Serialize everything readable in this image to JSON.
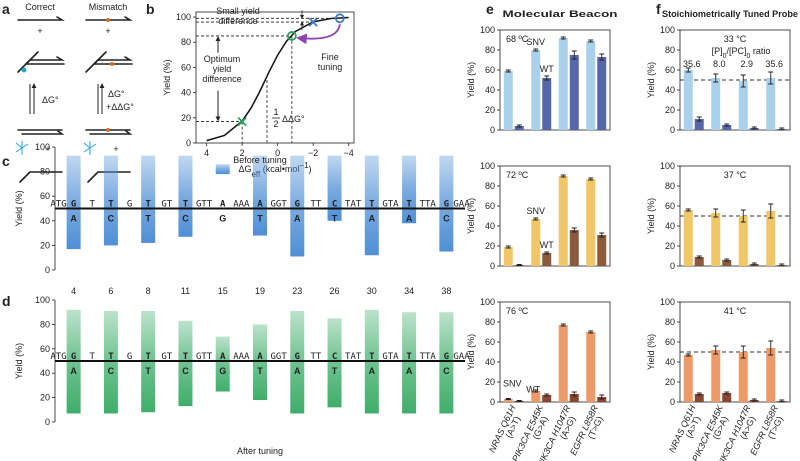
{
  "panel_labels": [
    "a",
    "b",
    "c",
    "d",
    "e",
    "f"
  ],
  "panel_a": {
    "correct": "Correct",
    "mismatch": "Mismatch",
    "plus": "+",
    "dg": "ΔG°",
    "ddg": "+ΔΔG°"
  },
  "panel_e_title": "Molecular Beacon",
  "panel_f_title": "Stoichiometrically Tuned Probe",
  "sequence": {
    "flanks": [
      "ATG",
      "T",
      "G",
      "GT",
      "GTT",
      "AAA",
      "GGT",
      "TT",
      "TAT",
      "GTA",
      "TTA",
      "GAA"
    ],
    "bases": [
      "G",
      "T",
      "T",
      "T",
      "A",
      "A",
      "G",
      "C",
      "T",
      "T",
      "G"
    ],
    "mismatches": [
      "A",
      "C",
      "T",
      "C",
      "G",
      "T",
      "A",
      "T",
      "A",
      "A",
      "C"
    ]
  },
  "chart_data": [
    {
      "type": "line",
      "ylabel": "Yield (%)",
      "xlabel": [
        "ΔG",
        "eff",
        " (kcal•mol",
        "−1",
        ")"
      ],
      "xlim": [
        4.6,
        -4.3
      ],
      "ylim": [
        0,
        104
      ],
      "xticks": [
        4,
        2,
        0,
        {
          "value": -2,
          "label": "−2"
        },
        {
          "value": -4,
          "label": "−4"
        }
      ],
      "yticks": [
        0,
        20,
        40,
        60,
        80,
        100
      ],
      "x": [
        4,
        3,
        2,
        1.5,
        1,
        0.5,
        0,
        -0.5,
        -1,
        -2,
        -3,
        -4
      ],
      "values": [
        1.9,
        6,
        17.4,
        27.7,
        41.1,
        56,
        69.8,
        80.8,
        88.5,
        96.2,
        98.8,
        99.6
      ],
      "color": "#111111",
      "points": {
        "x": [
          2,
          -0.8,
          -2,
          -3.5
        ],
        "values": [
          17,
          85,
          96,
          99
        ],
        "markers": [
          "x",
          "o",
          "x",
          "o"
        ],
        "colors": [
          "#2ca05a",
          "#2ca05a",
          "#3a7cc8",
          "#3a7cc8"
        ]
      },
      "annotations": {
        "small": [
          "Small yield",
          "difference"
        ],
        "optimum": [
          "Optimum",
          "yield",
          "difference"
        ],
        "fine": [
          "Fine",
          "tuning"
        ],
        "half": [
          "1",
          "2",
          "ΔΔG°"
        ]
      }
    },
    {
      "type": "range_bar",
      "title": "Before tuning",
      "ylabel": "Yield (%)",
      "color": "#4f8fd6",
      "categories": [
        "4",
        "6",
        "8",
        "11",
        "15",
        "19",
        "23",
        "26",
        "30",
        "34",
        "38"
      ],
      "high": [
        93,
        93,
        93,
        93,
        86,
        93,
        93,
        93,
        93,
        93,
        93
      ],
      "low": [
        17,
        20,
        22,
        27,
        78,
        28,
        11,
        40,
        12,
        38,
        15
      ],
      "ylim": [
        0,
        100
      ],
      "yticks": [
        0,
        20,
        40,
        60,
        80,
        100
      ],
      "hline": 50
    },
    {
      "type": "range_bar",
      "title": "After tuning",
      "ylabel": "Yield (%)",
      "color": "#3fae6a",
      "high": [
        92,
        91,
        91,
        83,
        70,
        80,
        91,
        85,
        92,
        90,
        90
      ],
      "low": [
        7,
        7,
        8,
        13,
        25,
        18,
        7,
        12,
        7,
        7,
        7
      ],
      "ylim": [
        0,
        100
      ],
      "yticks": [
        0,
        20,
        40,
        60,
        80,
        100
      ],
      "hline": 50
    },
    {
      "type": "bar",
      "title": "68 ºC",
      "title_color": "#3f8fd2",
      "ylabel": "Yield (%)",
      "ylim": [
        0,
        100
      ],
      "yticks": [
        0,
        20,
        40,
        60,
        80,
        100
      ],
      "series": [
        {
          "name": "SNV",
          "color": "#a9d1ec",
          "values": [
            59,
            80,
            92,
            89
          ],
          "errors": [
            1,
            1,
            1,
            1
          ]
        },
        {
          "name": "WT",
          "color": "#5567a8",
          "values": [
            4,
            52,
            75,
            73
          ],
          "errors": [
            1,
            2,
            4,
            3
          ]
        }
      ]
    },
    {
      "type": "bar",
      "title": "72 ºC",
      "title_color": "#e0a020",
      "ylabel": "Yield (%)",
      "ylim": [
        0,
        100
      ],
      "yticks": [
        0,
        20,
        40,
        60,
        80,
        100
      ],
      "series": [
        {
          "name": "SNV",
          "color": "#f1c766",
          "values": [
            19,
            47,
            90,
            87
          ],
          "errors": [
            1,
            1,
            1,
            1
          ]
        },
        {
          "name": "WT",
          "color": "#8a5a3c",
          "values": [
            1,
            13,
            36,
            31
          ],
          "errors": [
            0.5,
            1,
            2,
            2
          ]
        }
      ]
    },
    {
      "type": "bar",
      "title": "76 ºC",
      "title_color": "#c0392b",
      "ylabel": "Yield (%)",
      "ylim": [
        0,
        100
      ],
      "yticks": [
        0,
        20,
        40,
        60,
        80,
        100
      ],
      "categories": [
        "NRAS Q61H",
        "PIK3CA E545K",
        "PIK3CA H1047R",
        "EGFR L858R"
      ],
      "category_notes": [
        "(A>T)",
        "(G>A)",
        "(A>G)",
        "(T>G)"
      ],
      "series": [
        {
          "name": "SNV",
          "color": "#ee9a68",
          "values": [
            3,
            11,
            77,
            70
          ],
          "errors": [
            0.5,
            1,
            1,
            1
          ]
        },
        {
          "name": "WT",
          "color": "#8a4630",
          "values": [
            1,
            7,
            8,
            5
          ],
          "errors": [
            0.5,
            1,
            2,
            2
          ]
        }
      ]
    },
    {
      "type": "bar",
      "title": "33 °C",
      "title_color": "#3f8fd2",
      "ylabel": "Yield (%)",
      "ylim": [
        0,
        100
      ],
      "yticks": [
        0,
        20,
        40,
        60,
        80,
        100
      ],
      "hline": 50,
      "ratio_label": [
        "[P]",
        "0",
        "/[PC]",
        "0",
        " ratio"
      ],
      "ratios": [
        "35.6",
        "8.0",
        "2.9",
        "35.6"
      ],
      "series": [
        {
          "color": "#a9d1ec",
          "values": [
            60,
            52,
            49,
            52
          ],
          "errors": [
            2,
            4,
            6,
            6
          ]
        },
        {
          "color": "#5567a8",
          "values": [
            11,
            5,
            2,
            1
          ],
          "errors": [
            2,
            1,
            1,
            1
          ]
        }
      ]
    },
    {
      "type": "bar",
      "title": "37 °C",
      "title_color": "#e0a020",
      "ylabel": "Yield (%)",
      "ylim": [
        0,
        100
      ],
      "yticks": [
        0,
        20,
        40,
        60,
        80,
        100
      ],
      "hline": 50,
      "series": [
        {
          "color": "#f1c766",
          "values": [
            56,
            53,
            50,
            55
          ],
          "errors": [
            1,
            4,
            6,
            7
          ]
        },
        {
          "color": "#8a5a3c",
          "values": [
            9,
            6,
            2,
            1
          ],
          "errors": [
            1,
            1,
            1,
            1
          ]
        }
      ]
    },
    {
      "type": "bar",
      "title": "41 °C",
      "title_color": "#c0392b",
      "ylabel": "Yield (%)",
      "ylim": [
        0,
        100
      ],
      "yticks": [
        0,
        20,
        40,
        60,
        80,
        100
      ],
      "hline": 50,
      "categories": [
        "NRAS Q61H",
        "PIK3CA E545K",
        "PIK3CA H1047R",
        "EGFR L858R"
      ],
      "category_notes": [
        "(A>T)",
        "(G>A)",
        "(A>G)",
        "(T>G)"
      ],
      "series": [
        {
          "color": "#ee9a68",
          "values": [
            47,
            52,
            50,
            54
          ],
          "errors": [
            1,
            4,
            6,
            7
          ]
        },
        {
          "color": "#8a4630",
          "values": [
            8,
            9,
            2,
            1
          ],
          "errors": [
            1,
            1,
            1,
            1
          ]
        }
      ]
    }
  ]
}
